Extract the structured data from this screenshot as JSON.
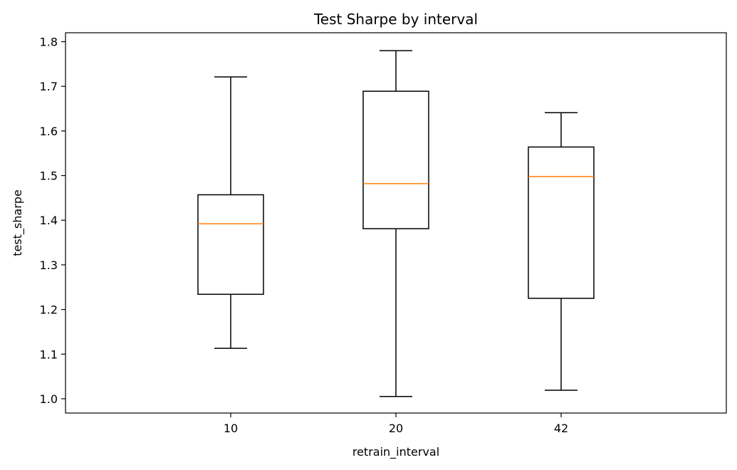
{
  "chart_data": {
    "type": "boxplot",
    "title": "Test Sharpe by interval",
    "xlabel": "retrain_interval",
    "ylabel": "test_sharpe",
    "ylim": [
      0.968,
      1.82
    ],
    "yticks": [
      "1.0",
      "1.1",
      "1.2",
      "1.3",
      "1.4",
      "1.5",
      "1.6",
      "1.7",
      "1.8"
    ],
    "categories": [
      "10",
      "20",
      "42"
    ],
    "boxes": [
      {
        "category": "10",
        "whisker_low": 1.113,
        "q1": 1.234,
        "median": 1.392,
        "q3": 1.457,
        "whisker_high": 1.721
      },
      {
        "category": "20",
        "whisker_low": 1.005,
        "q1": 1.381,
        "median": 1.482,
        "q3": 1.689,
        "whisker_high": 1.78
      },
      {
        "category": "42",
        "whisker_low": 1.019,
        "q1": 1.225,
        "median": 1.498,
        "q3": 1.564,
        "whisker_high": 1.641
      }
    ],
    "grid": false,
    "colors": {
      "box": "#000000",
      "median": "#ff7f0e",
      "axes": "#000000",
      "background": "#ffffff"
    }
  }
}
